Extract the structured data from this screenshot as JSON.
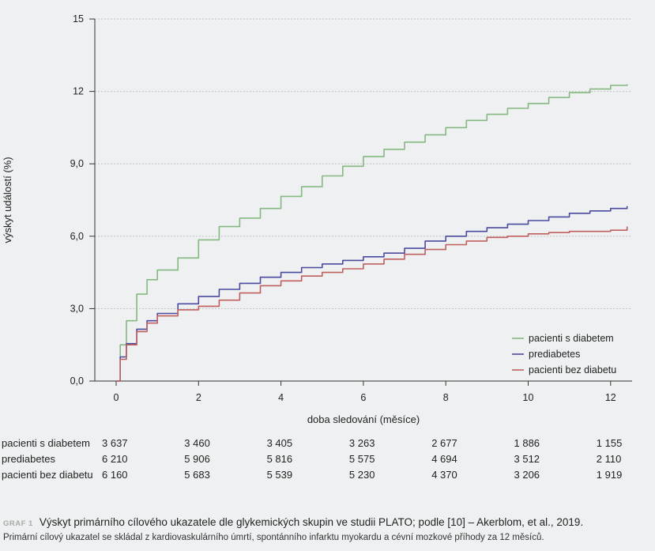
{
  "chart_data": {
    "type": "line",
    "xlabel": "doba sledování (měsíce)",
    "ylabel": "výskyt událostí (%)",
    "xlim": [
      0,
      12.5
    ],
    "ylim": [
      0,
      15
    ],
    "xticks": [
      0,
      2,
      4,
      6,
      8,
      10,
      12
    ],
    "xtick_labels": [
      "0",
      "2",
      "4",
      "6",
      "8",
      "10",
      "12"
    ],
    "yticks": [
      0,
      3,
      6,
      9,
      12,
      15
    ],
    "ytick_labels": [
      "0,0",
      "3,0",
      "6,0",
      "9,0",
      "12",
      "15"
    ],
    "grid": "horizontal dashed",
    "legend_position": "bottom-right",
    "series": [
      {
        "name": "pacienti s diabetem",
        "color": "#86b882",
        "x": [
          0,
          0.1,
          0.25,
          0.5,
          0.75,
          1.0,
          1.5,
          2.0,
          2.5,
          3.0,
          3.5,
          4.0,
          4.5,
          5.0,
          5.5,
          6.0,
          6.5,
          7.0,
          7.5,
          8.0,
          8.5,
          9.0,
          9.5,
          10.0,
          10.5,
          11.0,
          11.5,
          12.0,
          12.4
        ],
        "values": [
          0,
          1.5,
          2.5,
          3.6,
          4.2,
          4.6,
          5.1,
          5.85,
          6.4,
          6.75,
          7.15,
          7.65,
          8.05,
          8.5,
          8.9,
          9.3,
          9.6,
          9.9,
          10.2,
          10.5,
          10.8,
          11.05,
          11.3,
          11.5,
          11.75,
          11.95,
          12.1,
          12.25,
          12.3
        ]
      },
      {
        "name": "prediabetes",
        "color": "#4a4aa0",
        "x": [
          0,
          0.1,
          0.25,
          0.5,
          0.75,
          1.0,
          1.5,
          2.0,
          2.5,
          3.0,
          3.5,
          4.0,
          4.5,
          5.0,
          5.5,
          6.0,
          6.5,
          7.0,
          7.5,
          8.0,
          8.5,
          9.0,
          9.5,
          10.0,
          10.5,
          11.0,
          11.5,
          12.0,
          12.4
        ],
        "values": [
          0,
          1.0,
          1.55,
          2.15,
          2.5,
          2.8,
          3.2,
          3.5,
          3.8,
          4.05,
          4.3,
          4.5,
          4.7,
          4.85,
          5.0,
          5.15,
          5.3,
          5.5,
          5.8,
          6.0,
          6.2,
          6.35,
          6.5,
          6.65,
          6.8,
          6.95,
          7.05,
          7.15,
          7.25
        ]
      },
      {
        "name": "pacienti bez diabetu",
        "color": "#c0605e",
        "x": [
          0,
          0.1,
          0.25,
          0.5,
          0.75,
          1.0,
          1.5,
          2.0,
          2.5,
          3.0,
          3.5,
          4.0,
          4.5,
          5.0,
          5.5,
          6.0,
          6.5,
          7.0,
          7.5,
          8.0,
          8.5,
          9.0,
          9.5,
          10.0,
          10.5,
          11.0,
          11.5,
          12.0,
          12.4
        ],
        "values": [
          0,
          0.9,
          1.5,
          2.05,
          2.4,
          2.7,
          2.95,
          3.1,
          3.35,
          3.65,
          3.95,
          4.15,
          4.35,
          4.5,
          4.65,
          4.85,
          5.05,
          5.25,
          5.45,
          5.65,
          5.8,
          5.95,
          6.0,
          6.1,
          6.15,
          6.2,
          6.2,
          6.25,
          6.4
        ]
      }
    ]
  },
  "risk_table": {
    "columns": [
      "0",
      "2",
      "4",
      "6",
      "8",
      "10",
      "12"
    ],
    "rows": [
      {
        "label": "pacienti s diabetem",
        "values": [
          "3 637",
          "3 460",
          "3 405",
          "3 263",
          "2 677",
          "1 886",
          "1 155"
        ]
      },
      {
        "label": "prediabetes",
        "values": [
          "6 210",
          "5 906",
          "5 816",
          "5 575",
          "4 694",
          "3 512",
          "2 110"
        ]
      },
      {
        "label": "pacienti bez diabetu",
        "values": [
          "6 160",
          "5 683",
          "5 539",
          "5 230",
          "4 370",
          "3 206",
          "1 919"
        ]
      }
    ]
  },
  "caption": {
    "tag": "GRAF 1",
    "title": "Výskyt primárního cílového ukazatele dle glykemických skupin ve studii PLATO; podle [10] – Akerblom, et al., 2019.",
    "note": "Primární cílový ukazatel se skládal z kardiovaskulárního úmrtí, spontánního infarktu myokardu a cévní mozkové příhody za 12 měsíců."
  }
}
